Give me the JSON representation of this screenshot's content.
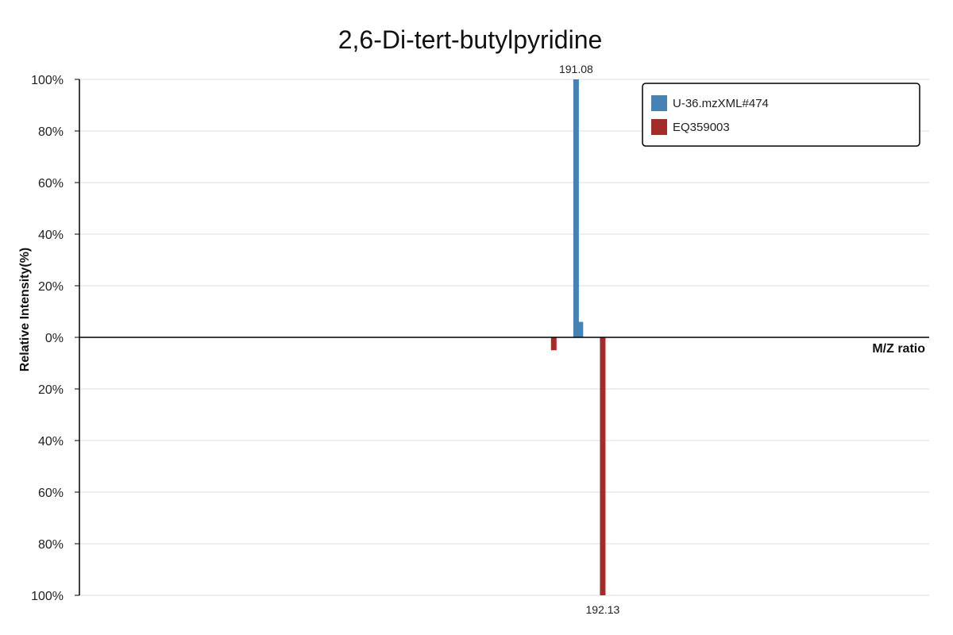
{
  "chart_data": {
    "type": "bar",
    "title": "2,6-Di-tert-butylpyridine",
    "xlabel": "M/Z ratio",
    "ylabel": "Relative Intensity(%)",
    "xlim": [
      171.5,
      205.0
    ],
    "ylim": [
      -100,
      100
    ],
    "yticks_upper": [
      "100%",
      "80%",
      "60%",
      "40%",
      "20%",
      "0%"
    ],
    "yticks_lower": [
      "20%",
      "40%",
      "60%",
      "80%",
      "100%"
    ],
    "grid": true,
    "legend_position": "top-right",
    "series": [
      {
        "name": "U-36.mzXML#474",
        "color": "#4682B4",
        "direction": "up",
        "peaks": [
          {
            "mz": 191.08,
            "intensity": 100
          },
          {
            "mz": 191.25,
            "intensity": 6
          }
        ]
      },
      {
        "name": "EQ359003",
        "color": "#A52A2A",
        "direction": "down",
        "peaks": [
          {
            "mz": 190.2,
            "intensity": 5
          },
          {
            "mz": 192.13,
            "intensity": 100
          }
        ]
      }
    ],
    "peak_labels": [
      {
        "text": "191.08",
        "series": 0,
        "mz": 191.08
      },
      {
        "text": "192.13",
        "series": 1,
        "mz": 192.13
      }
    ]
  }
}
